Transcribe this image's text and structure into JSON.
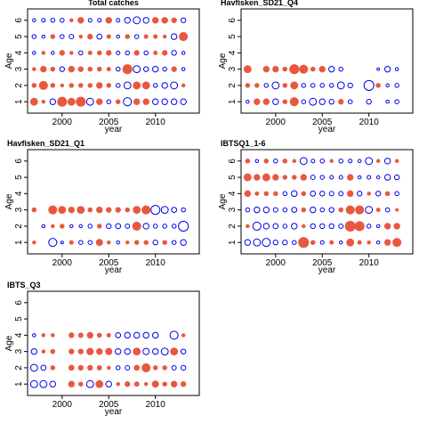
{
  "chart_data": [
    {
      "type": "bubble",
      "title": "Total catches",
      "xlabel": "year",
      "ylabel": "Age",
      "x": [
        1997,
        1998,
        1999,
        2000,
        2001,
        2002,
        2003,
        2004,
        2005,
        2006,
        2007,
        2008,
        2009,
        2010,
        2011,
        2012,
        2013
      ],
      "ages": [
        1,
        2,
        3,
        4,
        5,
        6
      ],
      "residuals": [
        [
          1.5,
          0.3,
          -1,
          2.5,
          1.5,
          2.5,
          -1.5,
          1,
          -0.5,
          0.5,
          -2,
          1,
          1,
          -1,
          -1,
          -1,
          -1
        ],
        [
          0.5,
          2,
          0.5,
          0.3,
          0.5,
          0.5,
          0.5,
          1,
          0.5,
          -0.5,
          -1.5,
          1.5,
          1.5,
          -0.5,
          -1,
          -1.5,
          0.3
        ],
        [
          0.3,
          1,
          0.5,
          -0.7,
          1,
          0.7,
          0.5,
          0.5,
          0.4,
          -0.5,
          2.5,
          -1.5,
          -0.7,
          -1,
          -0.5,
          0.7,
          -0.3
        ],
        [
          -0.3,
          0.3,
          -0.3,
          0.7,
          0.3,
          -0.5,
          0.4,
          0.5,
          0.7,
          -0.4,
          -0.5,
          0.7,
          -0.5,
          0.4,
          0.7,
          -0.7,
          -0.3
        ],
        [
          -0.5,
          -0.3,
          0.5,
          -0.5,
          -0.6,
          0.3,
          0.7,
          -0.8,
          0.4,
          -0.3,
          0.5,
          -0.5,
          0.4,
          0.4,
          0.3,
          -1,
          2
        ],
        [
          -0.3,
          -0.4,
          -0.5,
          -0.5,
          0.3,
          1,
          -0.4,
          -0.4,
          1,
          -0.4,
          -1,
          -1.5,
          -1,
          1,
          1,
          0.7,
          -0.7
        ]
      ],
      "xlim": [
        1996.3,
        2014.7
      ],
      "ylim": [
        0.3,
        6.7
      ],
      "xticks": [
        2000,
        2005,
        2010
      ],
      "yticks": [
        1,
        2,
        3,
        4,
        5,
        6
      ],
      "pos_color": "#e8583f",
      "neg_color": "#0000ee"
    },
    {
      "type": "bubble",
      "title": "Havfisken_SD21_Q4",
      "xlabel": "year",
      "ylabel": "Age",
      "x": [
        1997,
        1998,
        1999,
        2000,
        2001,
        2002,
        2003,
        2004,
        2005,
        2006,
        2007,
        2008,
        2009,
        2010,
        2011,
        2012,
        2013
      ],
      "ages": [
        1,
        2,
        3
      ],
      "residuals": [
        [
          -0.3,
          1,
          1,
          -1,
          0.5,
          2,
          -0.5,
          -1.5,
          -1,
          -0.7,
          0.7,
          -0.5,
          null,
          -0.7,
          null,
          -0.3,
          -0.5
        ],
        [
          0.5,
          0.5,
          -0.5,
          -1.5,
          0.5,
          1.5,
          -0.5,
          -0.5,
          -0.5,
          -0.5,
          -1.5,
          -0.7,
          null,
          -3,
          0.5,
          -0.3,
          -0.5
        ],
        [
          1.5,
          null,
          1,
          1,
          0.5,
          2.5,
          2,
          0.5,
          1,
          -1,
          -0.5,
          null,
          null,
          null,
          -0.2,
          -1,
          -0.3
        ]
      ],
      "xlim": [
        1996.3,
        2014.7
      ],
      "ylim": [
        0.3,
        6.7
      ],
      "xticks": [
        2000,
        2005,
        2010
      ],
      "yticks": [
        1,
        2,
        3,
        4,
        5,
        6
      ],
      "pos_color": "#e8583f",
      "neg_color": "#0000ee"
    },
    {
      "type": "bubble",
      "title": "Havfisken_SD21_Q1",
      "xlabel": "year",
      "ylabel": "Age",
      "x": [
        1997,
        1998,
        1999,
        2000,
        2001,
        2002,
        2003,
        2004,
        2005,
        2006,
        2007,
        2008,
        2009,
        2010,
        2011,
        2012,
        2013
      ],
      "ages": [
        1,
        2,
        3
      ],
      "residuals": [
        [
          0.3,
          null,
          -2,
          -0.2,
          0.4,
          -0.5,
          -0.5,
          1.2,
          0.3,
          -0.3,
          0.3,
          0.5,
          0.5,
          -0.7,
          0.5,
          -0.5,
          -1
        ],
        [
          null,
          -0.3,
          0.3,
          0.5,
          -0.3,
          -0.3,
          -0.5,
          0.5,
          -0.7,
          -0.8,
          -0.6,
          2,
          -1,
          -0.5,
          -0.5,
          -0.5,
          -3
        ],
        [
          0.5,
          null,
          2,
          1.5,
          1,
          1.5,
          0.5,
          1,
          0.7,
          0.7,
          0.5,
          1.5,
          2,
          -2.5,
          -1.5,
          -0.8,
          -0.5
        ]
      ],
      "xlim": [
        1996.3,
        2014.7
      ],
      "ylim": [
        0.3,
        6.7
      ],
      "xticks": [
        2000,
        2005,
        2010
      ],
      "yticks": [
        1,
        2,
        3,
        4,
        5,
        6
      ],
      "pos_color": "#e8583f",
      "neg_color": "#0000ee"
    },
    {
      "type": "bubble",
      "title": "IBTSQ1_1-6",
      "xlabel": "year",
      "ylabel": "Age",
      "x": [
        1997,
        1998,
        1999,
        2000,
        2001,
        2002,
        2003,
        2004,
        2005,
        2006,
        2007,
        2008,
        2009,
        2010,
        2011,
        2012,
        2013
      ],
      "ages": [
        1,
        2,
        3,
        4,
        5,
        6
      ],
      "residuals": [
        [
          -1,
          -1.5,
          -2,
          -0.7,
          -0.7,
          -0.5,
          3,
          0.5,
          -0.4,
          0.4,
          -0.3,
          1.5,
          0.4,
          0.3,
          -0.3,
          1,
          2
        ],
        [
          0.3,
          -2,
          -1,
          -0.8,
          -0.5,
          -1,
          0.3,
          -0.7,
          -0.7,
          -0.7,
          -0.6,
          3,
          2.5,
          -0.5,
          -0.3,
          1,
          1
        ],
        [
          -0.5,
          -1,
          -1,
          -0.6,
          -0.5,
          -0.8,
          0.5,
          -1,
          -0.5,
          -0.7,
          0.5,
          2,
          2,
          -1.5,
          0.4,
          -0.5,
          0.2
        ],
        [
          1,
          0.4,
          0.5,
          0.5,
          -0.5,
          -1,
          0.5,
          -0.8,
          -0.7,
          -0.6,
          -0.6,
          1,
          -0.7,
          0.3,
          -0.7,
          0.5,
          -0.5
        ],
        [
          1.5,
          1,
          1.5,
          1,
          0.5,
          0.5,
          1,
          -0.6,
          -0.5,
          -0.4,
          -0.4,
          1,
          -0.3,
          -0.4,
          -0.3,
          -1,
          -0.7
        ],
        [
          0.5,
          -0.3,
          0.5,
          -0.5,
          0.5,
          0.3,
          -1.5,
          -0.4,
          -0.5,
          0.3,
          -0.5,
          -0.4,
          -0.3,
          -1.5,
          0.3,
          -1,
          0.3
        ]
      ],
      "xlim": [
        1996.3,
        2014.7
      ],
      "ylim": [
        0.3,
        6.7
      ],
      "xticks": [
        2000,
        2005,
        2010
      ],
      "yticks": [
        1,
        2,
        3,
        4,
        5,
        6
      ],
      "pos_color": "#e8583f",
      "neg_color": "#0000ee"
    },
    {
      "type": "bubble",
      "title": "IBTS_Q3",
      "xlabel": "year",
      "ylabel": "Age",
      "x": [
        1997,
        1998,
        1999,
        2000,
        2001,
        2002,
        2003,
        2004,
        2005,
        2006,
        2007,
        2008,
        2009,
        2010,
        2011,
        2012,
        2013
      ],
      "ages": [
        1,
        2,
        3,
        4
      ],
      "residuals": [
        [
          -1.5,
          -1.5,
          -1,
          null,
          1,
          0.5,
          -1.5,
          1.5,
          -1,
          0.3,
          0.7,
          0.6,
          0.3,
          1.2,
          0.5,
          1,
          0.7
        ],
        [
          -1.5,
          -0.8,
          0.5,
          null,
          0.8,
          0.7,
          0.7,
          0.6,
          0.3,
          -0.5,
          -0.6,
          0.8,
          2,
          0.5,
          0.5,
          -0.6,
          -0.7
        ],
        [
          -1,
          0.3,
          0.5,
          null,
          0.7,
          0.7,
          1.3,
          1,
          1.2,
          -1,
          -1,
          1.5,
          -1.2,
          -1,
          -1.5,
          1.5,
          -0.7
        ],
        [
          -0.3,
          0.3,
          0.3,
          null,
          0.7,
          0.6,
          1,
          0.5,
          0.4,
          -0.8,
          -1,
          -1,
          -1,
          -1,
          null,
          -2,
          0.3
        ]
      ],
      "xlim": [
        1996.3,
        2014.7
      ],
      "ylim": [
        0.3,
        6.7
      ],
      "xticks": [
        2000,
        2005,
        2010
      ],
      "yticks": [
        1,
        2,
        3,
        4,
        5,
        6
      ],
      "pos_color": "#e8583f",
      "neg_color": "#0000ee"
    }
  ]
}
